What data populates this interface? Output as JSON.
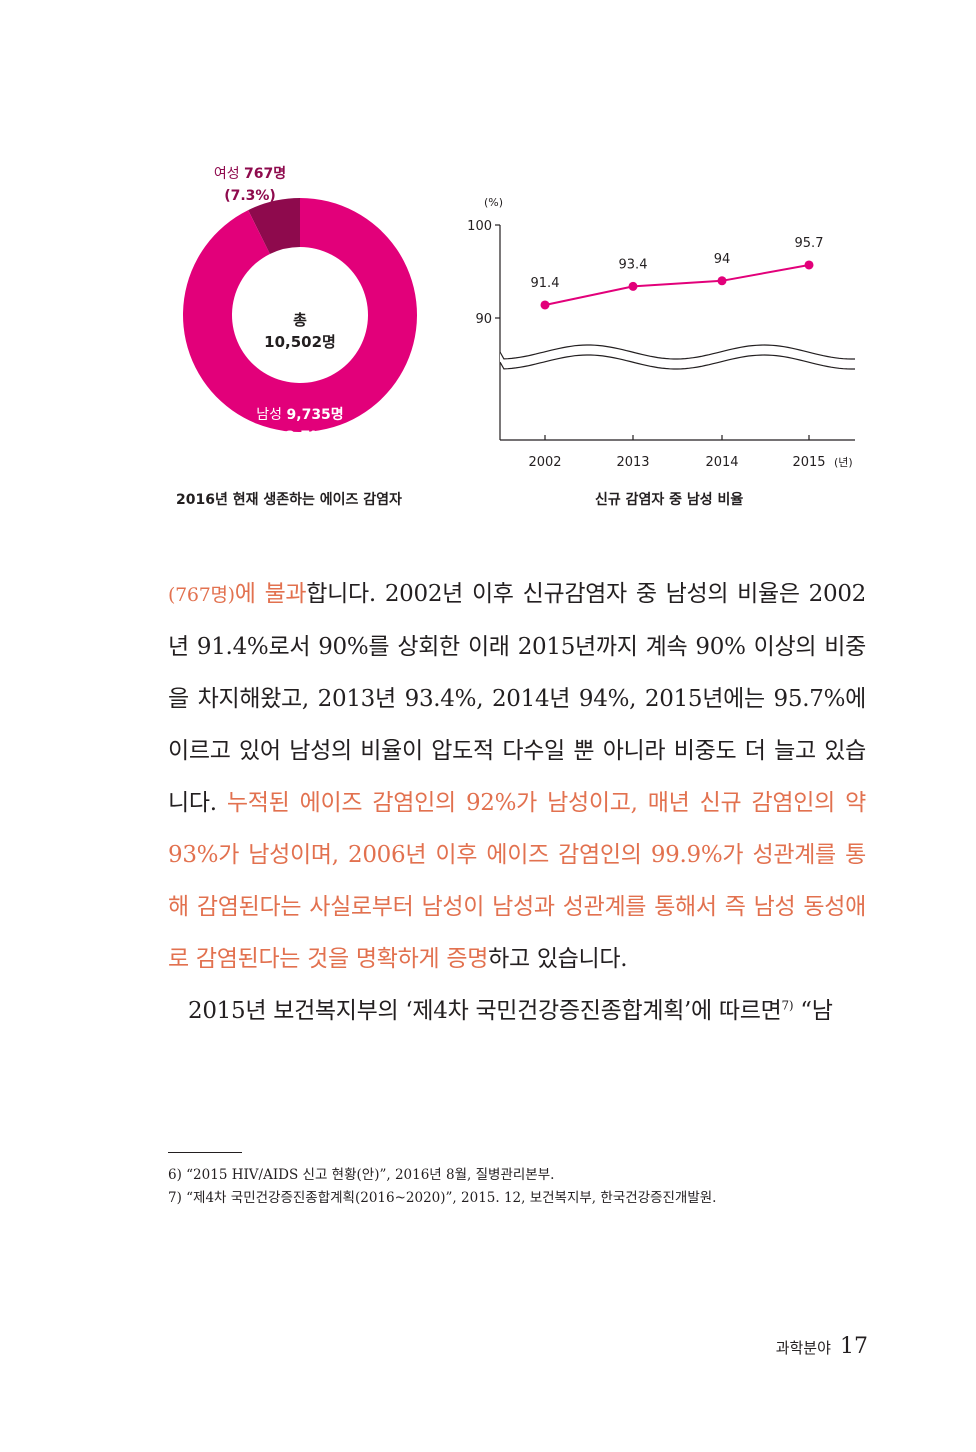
{
  "chart_data": [
    {
      "type": "pie",
      "center_label": [
        "총",
        "10,502명"
      ],
      "slices": [
        {
          "label_prefix": "여성 ",
          "label_count": "767명",
          "percent_label": "(7.3%)",
          "value": 7.3,
          "color": "#8e0a4d"
        },
        {
          "label_prefix": "남성 ",
          "label_count": "9,735명",
          "percent_label": "(92.7%)",
          "value": 92.7,
          "color": "#e2007a"
        }
      ],
      "caption": "2016년 현재 생존하는 에이즈 감염자"
    },
    {
      "type": "line",
      "x": [
        "2002",
        "2013",
        "2014",
        "2015"
      ],
      "y": [
        91.4,
        93.4,
        94,
        95.7
      ],
      "point_labels": [
        "91.4",
        "93.4",
        "94",
        "95.7"
      ],
      "y_ticks": [
        "100",
        "90"
      ],
      "y_tick_values": [
        100,
        90
      ],
      "ylabel": "(%)",
      "xlabel": "(년)",
      "ylim": [
        90,
        100
      ],
      "axis_break": true,
      "series_color": "#e2007a",
      "caption": "신규 감염자 중 남성 비율"
    }
  ],
  "body": {
    "p1": {
      "s1_hl_small": "(767명)",
      "s1_hl": "에 불과",
      "s2": "합니다. 2002년 이후 신규감염자 중 남성의 비율은 2002년 91.4%로서 90%를 상회한 이래 2015년까지 계속 90% 이상의 비중을 차지해왔고, 2013년 93.4%, 2014년 94%, 2015년에는 95.7%에 이르고 있어 남성의 비율이 압도적 다수일 뿐 아니라 비중도 더 늘고 있습니다. ",
      "s3_hl": "누적된 에이즈 감염인의 92%가 남성이고, 매년 신규 감염인의 약 93%가 남성이며, 2006년 이후 에이즈 감염인의 99.9%가 성관계를 통해 감염된다는 사실로부터 남성이 남성과 성관계를 통해서 즉 남성 동성애로 감염된다는 것을 명확하게 증명",
      "s4": "하고 있습니다."
    },
    "p2": {
      "text": "2015년 보건복지부의 ‘제4차 국민건강증진종합계획’에 따르면",
      "sup": "7)",
      "tail": " “남"
    }
  },
  "footnotes": [
    "6) “2015 HIV/AIDS 신고 현황(안)”, 2016년 8월, 질병관리본부.",
    "7) “제4차 국민건강증진종합계획(2016~2020)”, 2015. 12, 보건복지부, 한국건강증진개발원."
  ],
  "footer": {
    "section": "과학분야",
    "page_number": "17"
  }
}
